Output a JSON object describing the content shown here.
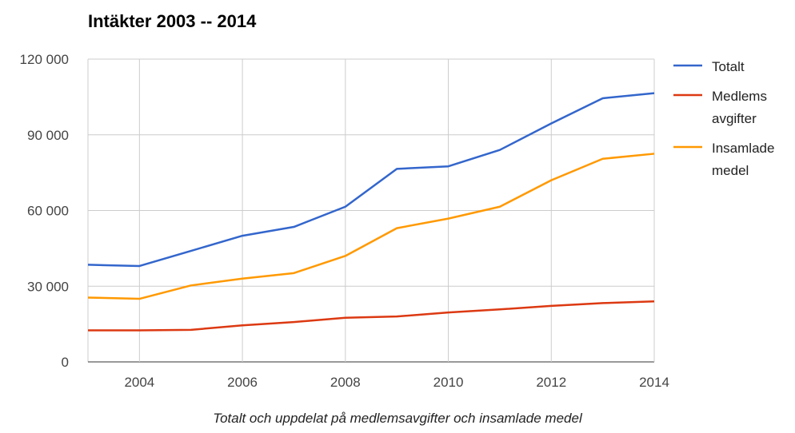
{
  "chart_data": {
    "type": "line",
    "title": "Intäkter 2003 -- 2014",
    "xlabel": "Totalt och uppdelat på medlemsavgifter och insamlade medel",
    "ylabel": "",
    "x": [
      2003,
      2004,
      2005,
      2006,
      2007,
      2008,
      2009,
      2010,
      2011,
      2012,
      2013,
      2014
    ],
    "xlim": [
      2003,
      2014
    ],
    "ylim": [
      0,
      120000
    ],
    "x_ticks": [
      2004,
      2006,
      2008,
      2010,
      2012,
      2014
    ],
    "x_tick_labels": [
      "2004",
      "2006",
      "2008",
      "2010",
      "2012",
      "2014"
    ],
    "y_ticks": [
      0,
      30000,
      60000,
      90000,
      120000
    ],
    "y_tick_labels": [
      "0",
      "30 000",
      "60 000",
      "90 000",
      "120 000"
    ],
    "grid": true,
    "legend_position": "right",
    "series": [
      {
        "name": "Totalt",
        "legend_lines": [
          "Totalt"
        ],
        "color": "#3366cc",
        "values": [
          38500,
          38000,
          44000,
          50000,
          53500,
          61500,
          76500,
          77500,
          84000,
          94500,
          104500,
          106500
        ]
      },
      {
        "name": "Medlems avgifter",
        "legend_lines": [
          "Medlems",
          "avgifter"
        ],
        "color": "#dc3912",
        "values": [
          12500,
          12500,
          12700,
          14500,
          15800,
          17500,
          18000,
          19600,
          20800,
          22200,
          23300,
          24000
        ]
      },
      {
        "name": "Insamlade medel",
        "legend_lines": [
          "Insamlade",
          "medel"
        ],
        "color": "#ff9900",
        "values": [
          25500,
          25000,
          30300,
          33000,
          35200,
          42000,
          53000,
          56800,
          61500,
          72000,
          80500,
          82500
        ]
      }
    ]
  }
}
